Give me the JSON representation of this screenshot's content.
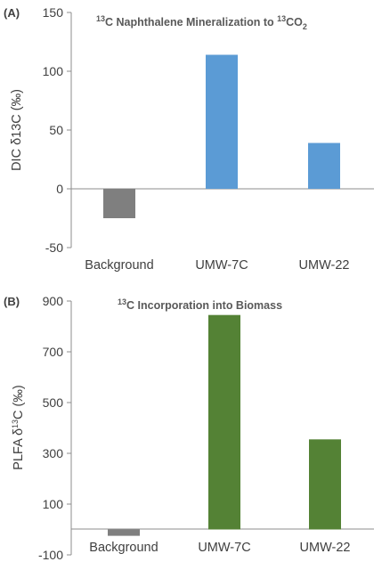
{
  "chart_data": [
    {
      "panel_label": "(A)",
      "type": "bar",
      "title": {
        "pre": "",
        "sup1": "13",
        "mid": "C Naphthalene Mineralization to ",
        "sup2": "13",
        "post": "CO",
        "sub": "2"
      },
      "ylabel": {
        "pre": "DIC δ13C (‰)",
        "sup": "",
        "post": ""
      },
      "categories": [
        "Background",
        "UMW-7C",
        "UMW-22"
      ],
      "values": [
        -25,
        114,
        39
      ],
      "colors": [
        "#7f7f7f",
        "#5b9bd5",
        "#5b9bd5"
      ],
      "ylim": [
        -50,
        150
      ],
      "yticks": [
        -50,
        0,
        50,
        100,
        150
      ],
      "grid": false,
      "legend": "none"
    },
    {
      "panel_label": "(B)",
      "type": "bar",
      "title": {
        "pre": "",
        "sup1": "13",
        "mid": "C Incorporation into Biomass",
        "sup2": "",
        "post": "",
        "sub": ""
      },
      "ylabel": {
        "pre": "PLFA δ",
        "sup": "13",
        "post": "C (‰)"
      },
      "categories": [
        "Background",
        "UMW-7C",
        "UMW-22"
      ],
      "values": [
        -25,
        845,
        355
      ],
      "colors": [
        "#7f7f7f",
        "#548235",
        "#548235"
      ],
      "ylim": [
        -100,
        900
      ],
      "yticks": [
        -100,
        100,
        300,
        500,
        700,
        900
      ],
      "grid": false,
      "legend": "none"
    }
  ]
}
